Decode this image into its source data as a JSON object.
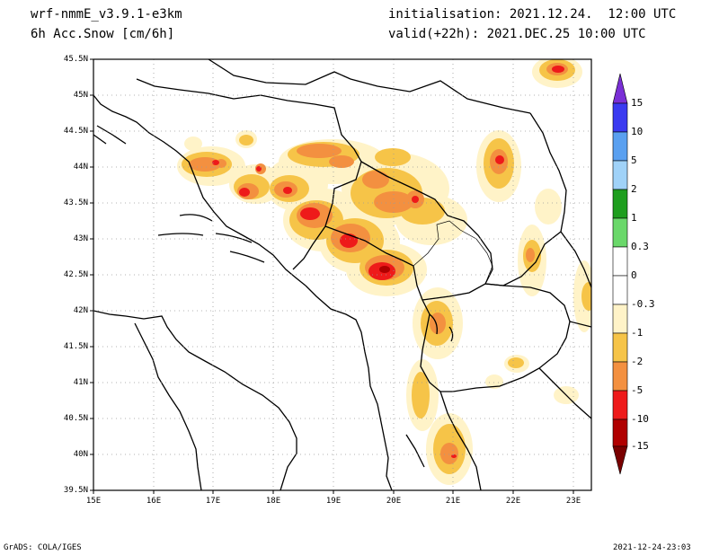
{
  "header": {
    "model": "wrf-nmmE_v3.9.1-e3km",
    "field": "6h Acc.Snow [cm/6h]",
    "init": "initialisation: 2021.12.24.  12:00 UTC",
    "valid": "valid(+22h): 2021.DEC.25 10:00 UTC"
  },
  "footer": {
    "credit": "GrADS: COLA/IGES",
    "timestamp": "2021-12-24-23:03"
  },
  "axes": {
    "lat_labels": [
      "45.5N",
      "45N",
      "44.5N",
      "44N",
      "43.5N",
      "43N",
      "42.5N",
      "42N",
      "41.5N",
      "41N",
      "40.5N",
      "40N",
      "39.5N"
    ],
    "lon_labels": [
      "15E",
      "16E",
      "17E",
      "18E",
      "19E",
      "20E",
      "21E",
      "22E",
      "23E"
    ],
    "lat_range": [
      39.5,
      45.5
    ],
    "lon_range": [
      15.0,
      23.3
    ]
  },
  "colorbar": {
    "labels": [
      "15",
      "10",
      "5",
      "2",
      "1",
      "0.3",
      "0",
      "-0.3",
      "-1",
      "-2",
      "-5",
      "-10",
      "-15"
    ],
    "colors": [
      "#7a2fd6",
      "#3a3af0",
      "#5aa0f0",
      "#a0d2f8",
      "#1e9e1e",
      "#6ad86a",
      "#ffffff",
      "#ffffff",
      "#fff3c8",
      "#f6c448",
      "#f39040",
      "#ee1a1a",
      "#b00000",
      "#7a0000"
    ]
  },
  "legend_colors": {
    "light": "#fff3c8",
    "yellow": "#f6c448",
    "orange": "#f39040",
    "red": "#ee1a1a",
    "darkred": "#b00000"
  }
}
